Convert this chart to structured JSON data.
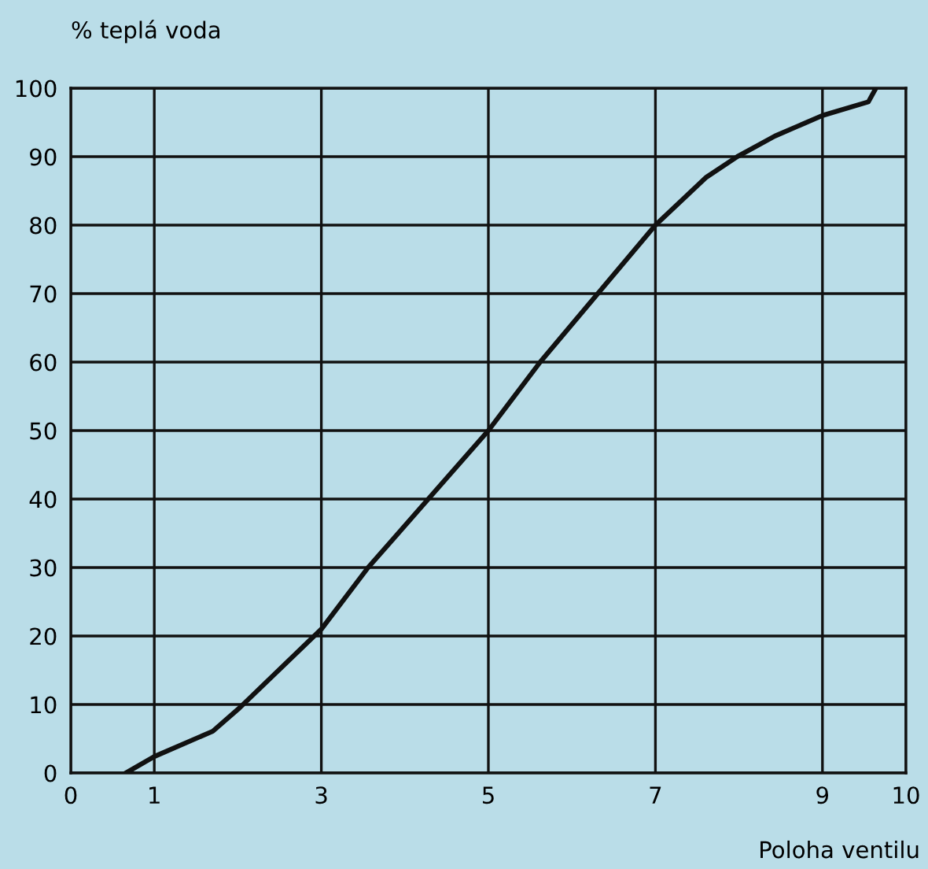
{
  "chart_data": {
    "type": "line",
    "xlabel": "Poloha ventilu",
    "ylabel": "% teplá voda",
    "x": [
      0.66,
      1,
      1.7,
      2.02,
      3,
      3.56,
      4.28,
      5,
      5.62,
      6.31,
      7,
      7.61,
      7.98,
      8.43,
      9,
      9.55,
      9.64
    ],
    "series": [
      {
        "color": "#111111",
        "values": [
          0,
          2.4,
          6.1,
          9.5,
          21,
          30,
          40,
          50,
          60,
          70,
          80,
          87,
          90,
          93,
          96,
          98,
          100
        ]
      }
    ],
    "xlim": [
      0,
      10
    ],
    "xticks": [
      0,
      1,
      3,
      5,
      7,
      9,
      10
    ],
    "ylim": [
      0,
      100
    ],
    "yticks": [
      0,
      10,
      20,
      30,
      40,
      50,
      60,
      70,
      80,
      90,
      100
    ],
    "grid": true,
    "legend": false,
    "marker": "none",
    "line_style": "solid"
  }
}
